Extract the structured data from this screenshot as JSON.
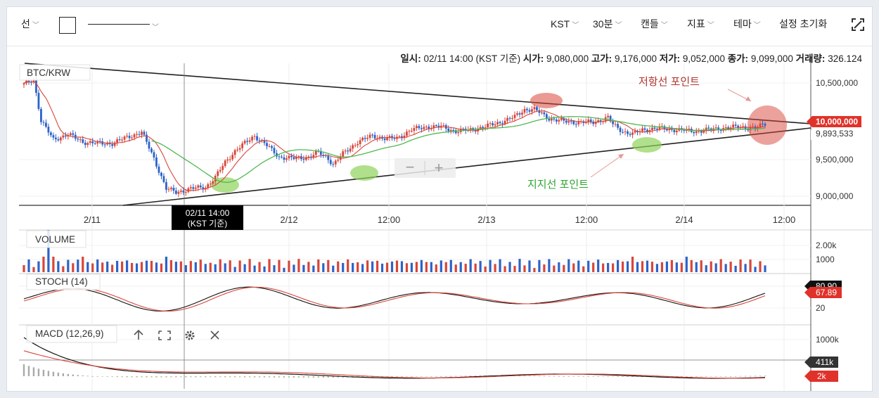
{
  "toolbar": {
    "drawing_mode": "선",
    "timezone": "KST",
    "interval": "30분",
    "chart_type": "캔들",
    "indicators": "지표",
    "theme": "테마",
    "reset": "설정 초기화"
  },
  "ohlc_bar": {
    "time_label": "일시:",
    "time_value": "02/11 14:00 (KST 기준)",
    "open_label": "시가:",
    "open_value": "9,080,000",
    "high_label": "고가:",
    "high_value": "9,176,000",
    "low_label": "저가:",
    "low_value": "9,052,000",
    "close_label": "종가:",
    "close_value": "9,099,000",
    "volume_label": "거래량:",
    "volume_value": "326.124"
  },
  "main_panel": {
    "symbol": "BTC/KRW",
    "price_ticks": [
      "10,500,000",
      "10,000,000",
      "9,500,000",
      "9,000,000"
    ],
    "price_tick_values": [
      10500000,
      10000000,
      9500000,
      9000000
    ],
    "current_price_badge": "10,000,000",
    "lower_price_badge": "9,893,533",
    "annotation_resistance": "저항선 포인트",
    "annotation_support": "지지선 포인트",
    "resistance_color": "#b0332d",
    "support_color": "#2ea52e",
    "zoom_out": "−",
    "zoom_in": "+"
  },
  "time_axis": {
    "labels": [
      "2/11",
      "2/12",
      "12:00",
      "2/13",
      "12:00",
      "2/14",
      "12:00"
    ],
    "crosshair_label_line1": "02/11 14:00",
    "crosshair_label_line2": "(KST 기준)"
  },
  "volume_panel": {
    "title": "VOLUME",
    "ticks": [
      "2.00k",
      "1000"
    ]
  },
  "stoch_panel": {
    "title": "STOCH (14)",
    "ticks": [
      "80",
      "20"
    ],
    "badge_top": "80.90",
    "badge_value": "67.89"
  },
  "macd_panel": {
    "title": "MACD (12,26,9)",
    "ticks": [
      "1000k"
    ],
    "badge_top": "411k",
    "badge_bottom": "2k"
  },
  "colors": {
    "up": "#d9463a",
    "down": "#2d63c8",
    "ma_short": "#d9463a",
    "ma_long": "#4fb94f"
  }
}
